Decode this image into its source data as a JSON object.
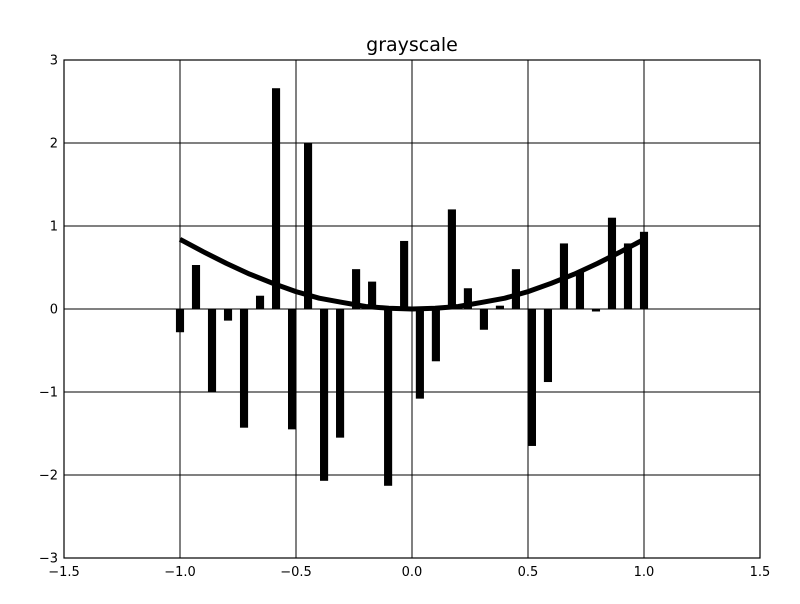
{
  "chart_data": {
    "type": "bar",
    "title": "grayscale",
    "xlabel": "",
    "ylabel": "",
    "xlim": [
      -1.5,
      1.5
    ],
    "ylim": [
      -3,
      3
    ],
    "grid": true,
    "x_ticks": [
      -1.5,
      -1.0,
      -0.5,
      0.0,
      0.5,
      1.0,
      1.5
    ],
    "x_tick_labels": [
      "−1.5",
      "−1.0",
      "−0.5",
      "0.0",
      "0.5",
      "1.0",
      "1.5"
    ],
    "y_ticks": [
      -3,
      -2,
      -1,
      0,
      1,
      2,
      3
    ],
    "y_tick_labels": [
      "−3",
      "−2",
      "−1",
      "0",
      "1",
      "2",
      "3"
    ],
    "bar_width": 0.035,
    "colors": {
      "bars": "#000000",
      "line": "#000000",
      "grid": "#000000",
      "background": "#ffffff"
    },
    "series": [
      {
        "kind": "bar",
        "x": [
          -1.0,
          -0.931,
          -0.862,
          -0.793,
          -0.724,
          -0.655,
          -0.586,
          -0.517,
          -0.448,
          -0.379,
          -0.31,
          -0.241,
          -0.172,
          -0.103,
          -0.034,
          0.034,
          0.103,
          0.172,
          0.241,
          0.31,
          0.379,
          0.448,
          0.517,
          0.586,
          0.655,
          0.724,
          0.793,
          0.862,
          0.931,
          1.0
        ],
        "values": [
          -0.28,
          0.53,
          -1.0,
          -0.14,
          -1.43,
          0.16,
          2.66,
          -1.45,
          2.0,
          -2.07,
          -1.55,
          0.48,
          0.33,
          -2.13,
          0.82,
          -1.08,
          -0.63,
          1.2,
          0.25,
          -0.25,
          0.04,
          0.48,
          -1.65,
          -0.88,
          0.79,
          0.45,
          -0.03,
          1.1,
          0.79,
          0.93
        ]
      },
      {
        "kind": "line",
        "x": [
          -1.0,
          -0.9,
          -0.8,
          -0.7,
          -0.6,
          -0.5,
          -0.4,
          -0.3,
          -0.2,
          -0.1,
          0.0,
          0.1,
          0.2,
          0.3,
          0.4,
          0.5,
          0.6,
          0.7,
          0.8,
          0.9,
          1.0
        ],
        "values": [
          0.84,
          0.69,
          0.55,
          0.42,
          0.31,
          0.21,
          0.13,
          0.08,
          0.03,
          0.01,
          0.0,
          0.01,
          0.03,
          0.08,
          0.13,
          0.21,
          0.31,
          0.42,
          0.55,
          0.69,
          0.84
        ]
      }
    ]
  }
}
